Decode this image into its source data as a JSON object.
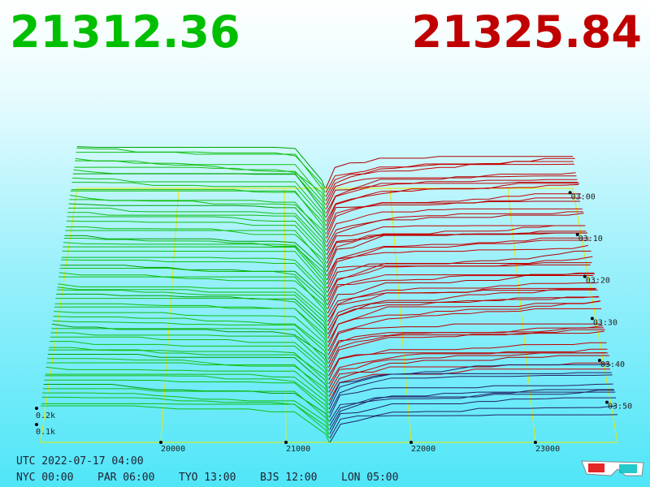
{
  "header": {
    "bid": "21312.36",
    "ask": "21325.84"
  },
  "axes": {
    "price_ticks": [
      "20000",
      "21000",
      "22000",
      "23000"
    ],
    "time_ticks": [
      "03:00",
      "03:10",
      "03:20",
      "03:30",
      "03:40",
      "03:50"
    ],
    "volume_ticks": [
      "0.2k",
      "0.1k"
    ]
  },
  "footer": {
    "utc": "UTC 2022-07-17 04:00",
    "cities": [
      "NYC 00:00",
      "PAR 06:00",
      "TYO 13:00",
      "BJS 12:00",
      "LON 05:00"
    ]
  }
}
